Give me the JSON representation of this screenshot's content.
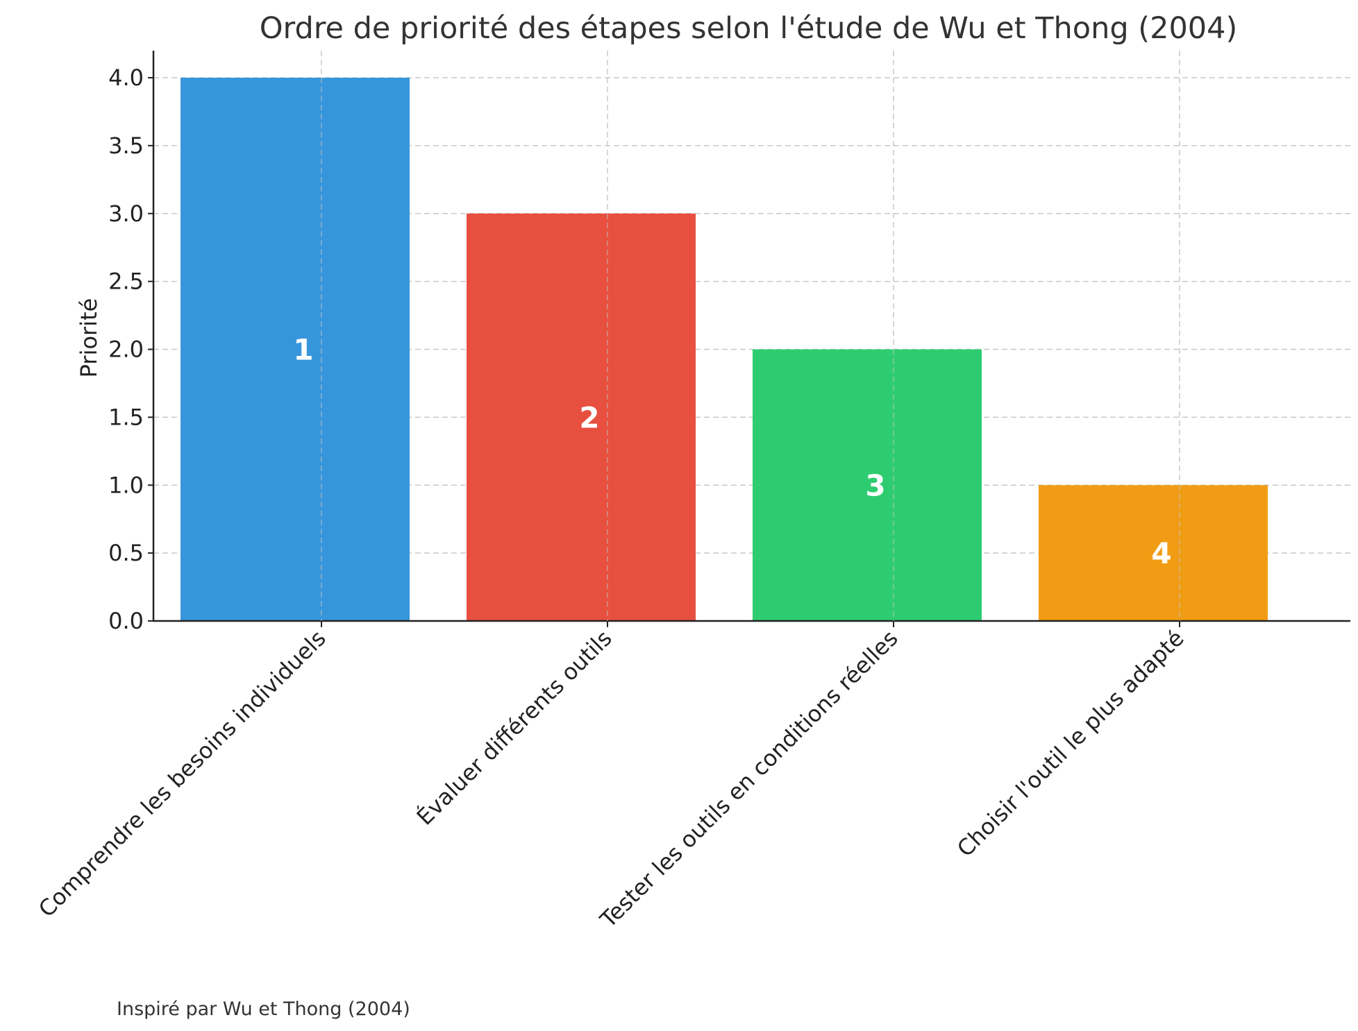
{
  "chart_data": {
    "type": "bar",
    "title": "Ordre de priorité des étapes selon l'étude de Wu et Thong (2004)",
    "xlabel": "",
    "ylabel": "Priorité",
    "categories": [
      "Comprendre les besoins individuels",
      "Évaluer différents outils",
      "Tester les outils en conditions réelles",
      "Choisir l'outil le plus adapté"
    ],
    "values": [
      4,
      3,
      2,
      1
    ],
    "bar_labels": [
      "1",
      "2",
      "3",
      "4"
    ],
    "colors": [
      "#3796db",
      "#e74f3e",
      "#2ecc70",
      "#f09c15"
    ],
    "ylim": [
      0,
      4.2
    ],
    "yticks": [
      "0.0",
      "0.5",
      "1.0",
      "1.5",
      "2.0",
      "2.5",
      "3.0",
      "3.5",
      "4.0"
    ],
    "grid": true,
    "legend": "none"
  },
  "footnote": "Inspiré par Wu et Thong (2004)"
}
